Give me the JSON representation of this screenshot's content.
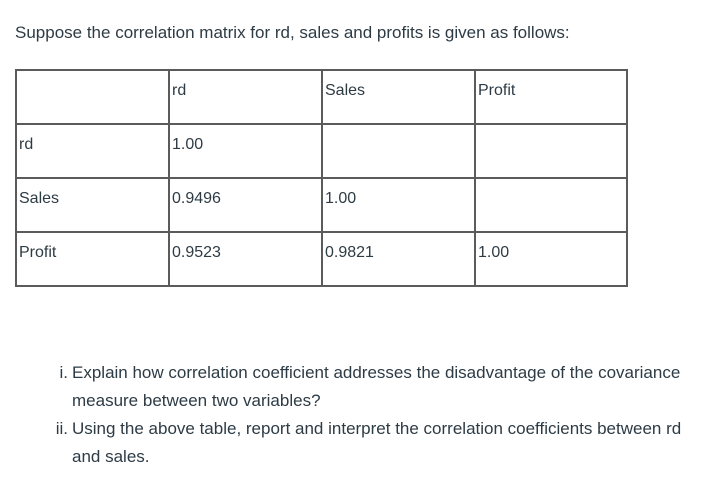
{
  "intro": "Suppose the correlation matrix for rd, sales and profits is given as follows:",
  "table": {
    "header": [
      "",
      "rd",
      "Sales",
      "Profit"
    ],
    "rows": [
      [
        "rd",
        "1.00",
        "",
        ""
      ],
      [
        "Sales",
        "0.9496",
        "1.00",
        ""
      ],
      [
        "Profit",
        "0.9523",
        "0.9821",
        "1.00"
      ]
    ]
  },
  "questions": [
    {
      "marker": "i.",
      "text": "Explain how correlation coefficient addresses the disadvantage of the covariance measure between two variables?"
    },
    {
      "marker": "ii.",
      "text": "Using the above table, report and interpret the correlation coefficients between rd and sales."
    }
  ]
}
